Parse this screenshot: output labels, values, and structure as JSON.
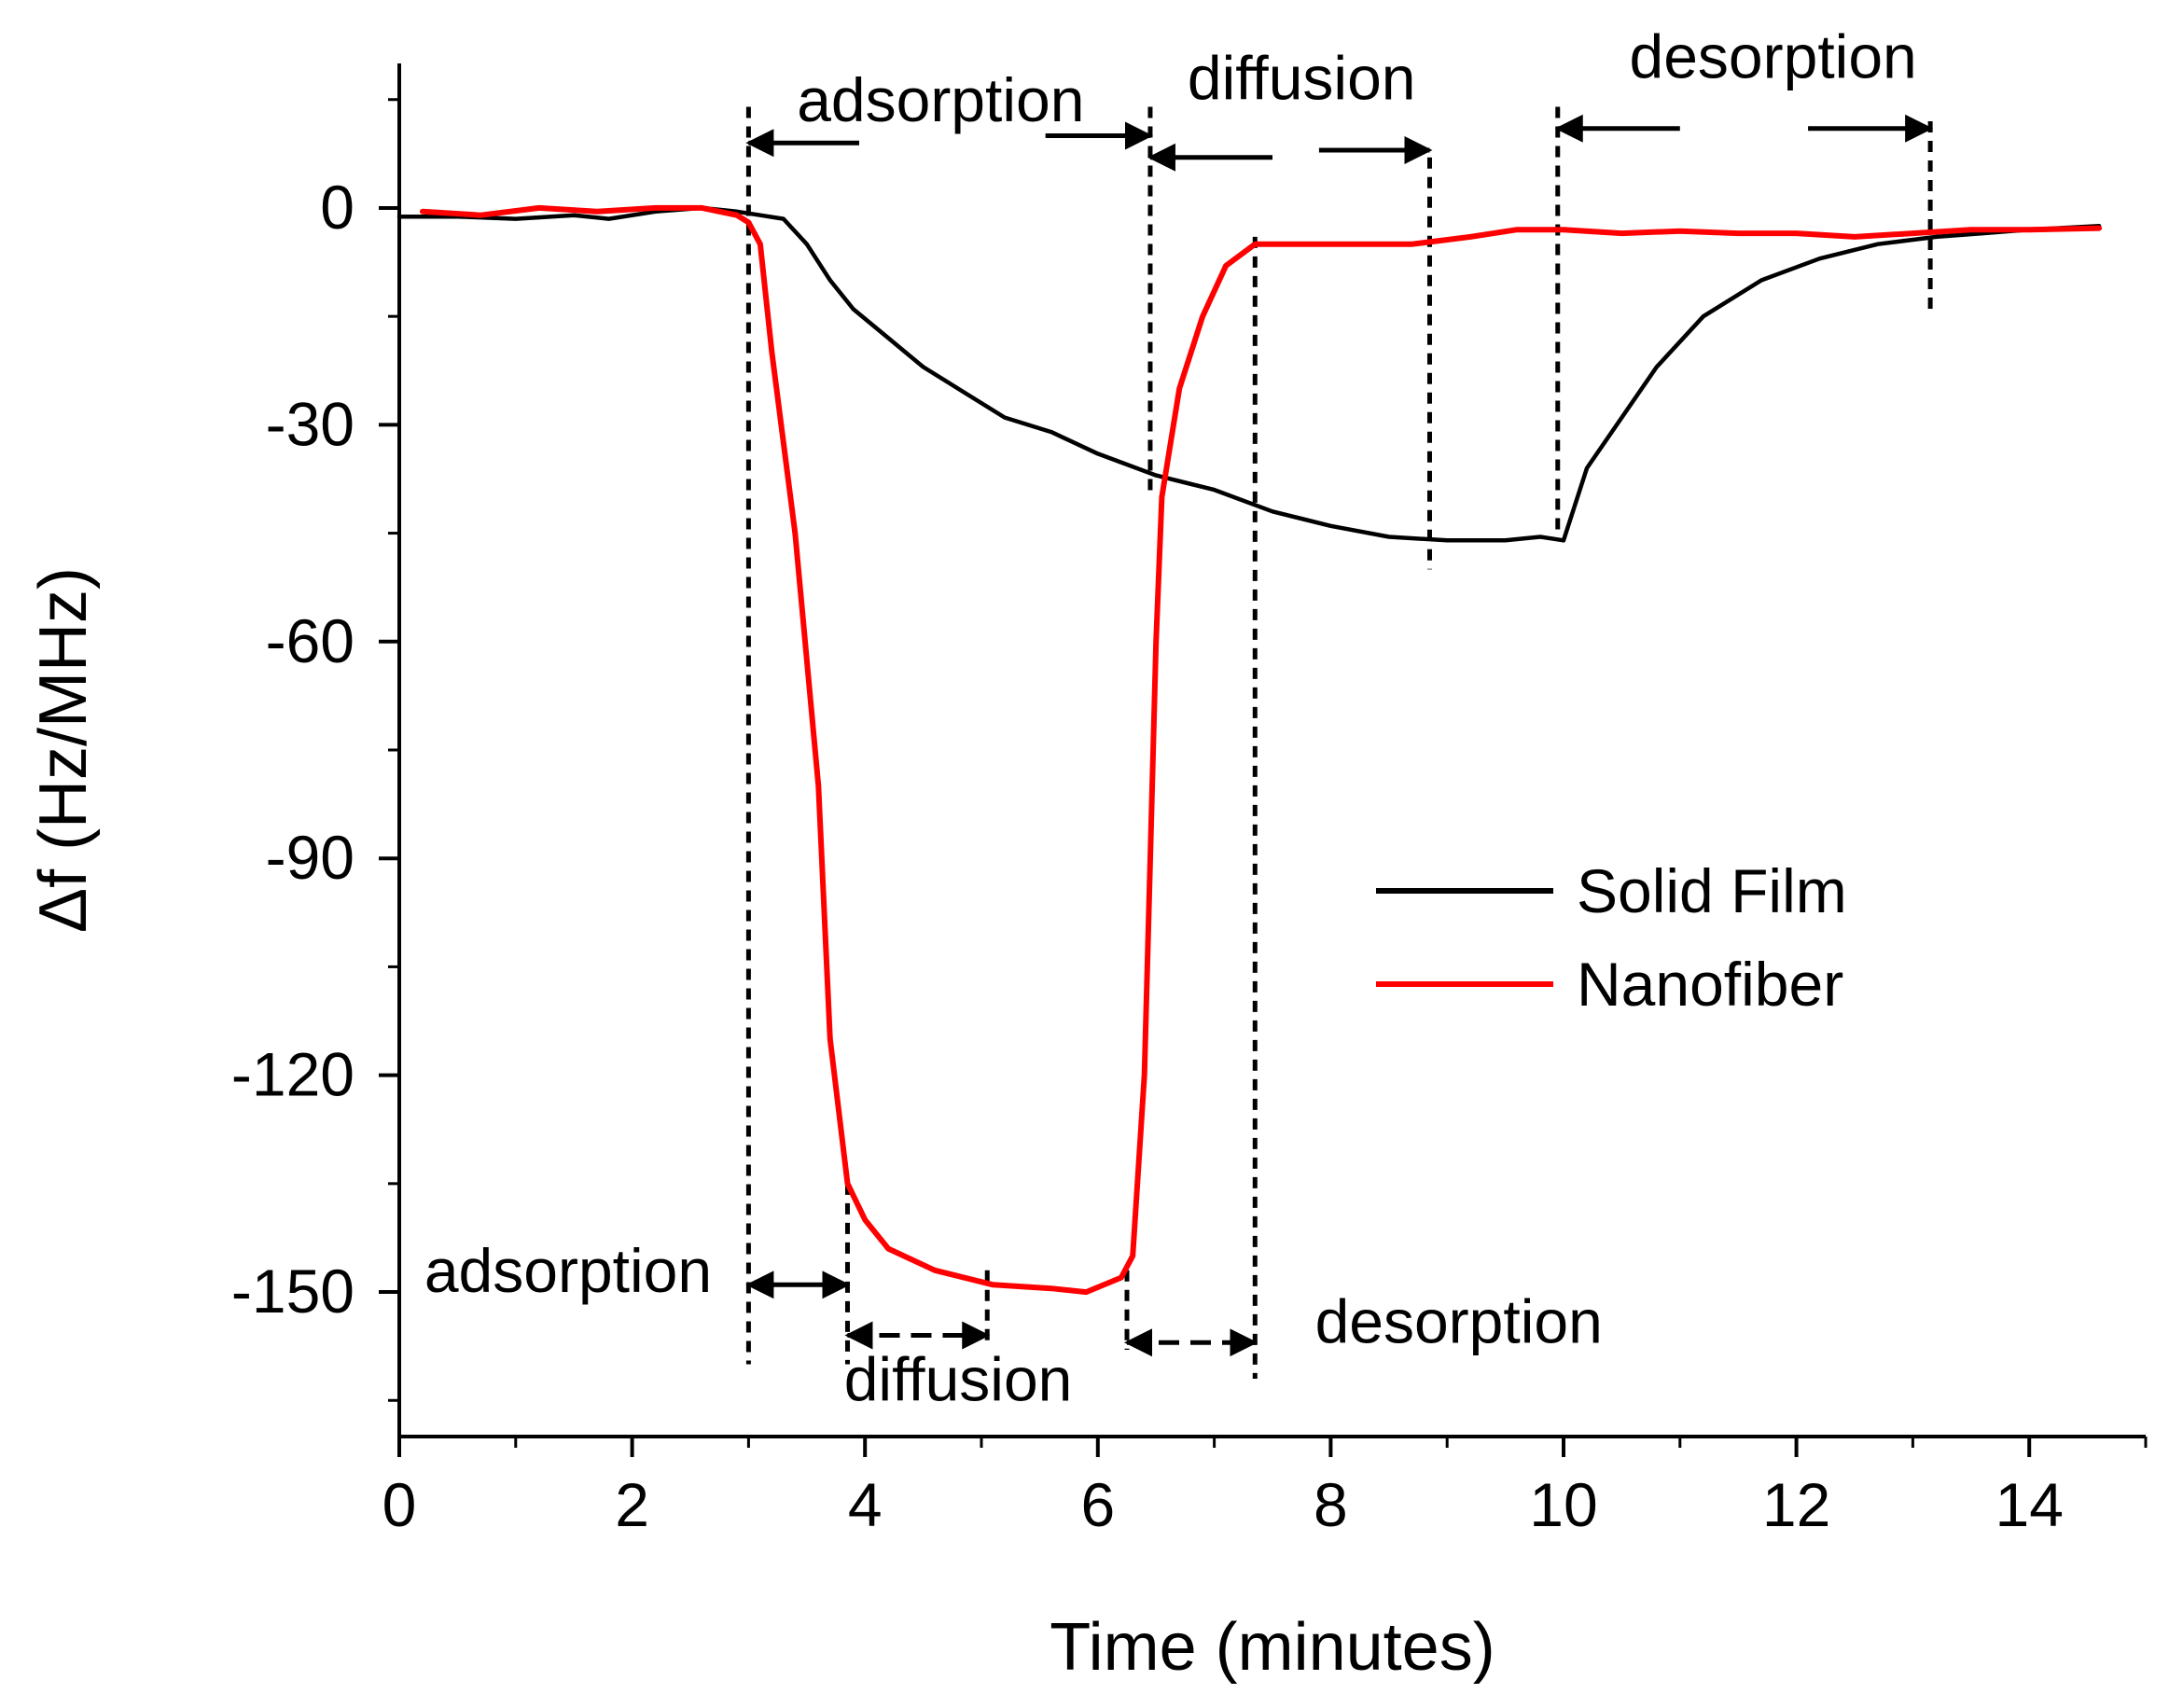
{
  "chart_data": {
    "type": "line",
    "title": "",
    "xlabel": "Time (minutes)",
    "ylabel": "Δf (Hz/MHz)",
    "xlim": [
      0,
      15
    ],
    "ylim": [
      -170,
      20
    ],
    "xticks": [
      0,
      2,
      4,
      6,
      8,
      10,
      12,
      14
    ],
    "yticks": [
      0,
      -30,
      -60,
      -90,
      -120,
      -150
    ],
    "x_minor_step": 1,
    "y_minor_step": 15,
    "grid": false,
    "legend": {
      "placement": "center-right"
    },
    "series": [
      {
        "name": "Solid Film",
        "color": "#000000",
        "points": [
          [
            0,
            -1.2
          ],
          [
            0.5,
            -1.2
          ],
          [
            1,
            -1.5
          ],
          [
            1.5,
            -1
          ],
          [
            1.8,
            -1.5
          ],
          [
            2.2,
            -0.5
          ],
          [
            2.6,
            0
          ],
          [
            2.9,
            -0.5
          ],
          [
            3.1,
            -1
          ],
          [
            3.3,
            -1.5
          ],
          [
            3.5,
            -5
          ],
          [
            3.7,
            -10
          ],
          [
            3.9,
            -14
          ],
          [
            4.2,
            -18
          ],
          [
            4.5,
            -22
          ],
          [
            4.8,
            -25
          ],
          [
            5.2,
            -29
          ],
          [
            5.6,
            -31
          ],
          [
            6,
            -34
          ],
          [
            6.5,
            -37
          ],
          [
            7,
            -39
          ],
          [
            7.5,
            -42
          ],
          [
            8,
            -44
          ],
          [
            8.5,
            -45.5
          ],
          [
            9,
            -46
          ],
          [
            9.5,
            -46
          ],
          [
            9.8,
            -45.5
          ],
          [
            10,
            -46
          ],
          [
            10.2,
            -36
          ],
          [
            10.5,
            -29
          ],
          [
            10.8,
            -22
          ],
          [
            11.2,
            -15
          ],
          [
            11.7,
            -10
          ],
          [
            12.2,
            -7
          ],
          [
            12.7,
            -5
          ],
          [
            13.2,
            -4
          ],
          [
            13.6,
            -3.5
          ],
          [
            14,
            -3
          ],
          [
            14.6,
            -2.5
          ]
        ]
      },
      {
        "name": "Nanofiber",
        "color": "#ff0000",
        "points": [
          [
            0.2,
            -0.5
          ],
          [
            0.7,
            -1
          ],
          [
            1.2,
            0
          ],
          [
            1.7,
            -0.5
          ],
          [
            2.2,
            0
          ],
          [
            2.6,
            0
          ],
          [
            2.9,
            -1
          ],
          [
            3.0,
            -2
          ],
          [
            3.1,
            -5
          ],
          [
            3.2,
            -20
          ],
          [
            3.4,
            -45
          ],
          [
            3.6,
            -80
          ],
          [
            3.7,
            -115
          ],
          [
            3.85,
            -135
          ],
          [
            4.0,
            -140
          ],
          [
            4.2,
            -144
          ],
          [
            4.6,
            -147
          ],
          [
            5.1,
            -149
          ],
          [
            5.6,
            -149.5
          ],
          [
            5.9,
            -150
          ],
          [
            6.2,
            -148
          ],
          [
            6.3,
            -145
          ],
          [
            6.4,
            -120
          ],
          [
            6.45,
            -90
          ],
          [
            6.5,
            -60
          ],
          [
            6.55,
            -40
          ],
          [
            6.7,
            -25
          ],
          [
            6.9,
            -15
          ],
          [
            7.1,
            -8
          ],
          [
            7.35,
            -5
          ],
          [
            7.8,
            -5
          ],
          [
            8.2,
            -5
          ],
          [
            8.7,
            -5
          ],
          [
            9.2,
            -4
          ],
          [
            9.6,
            -3
          ],
          [
            10,
            -3
          ],
          [
            10.5,
            -3.5
          ],
          [
            11,
            -3.2
          ],
          [
            11.5,
            -3.5
          ],
          [
            12,
            -3.5
          ],
          [
            12.5,
            -4
          ],
          [
            13,
            -3.5
          ],
          [
            13.5,
            -3
          ],
          [
            14,
            -3
          ],
          [
            14.6,
            -2.8
          ]
        ]
      }
    ],
    "annotations": [
      {
        "text": "adsorption",
        "x": 4.65,
        "y": 12
      },
      {
        "text": "diffusion",
        "x": 7.75,
        "y": 15
      },
      {
        "text": "desorption",
        "x": 11.8,
        "y": 18
      },
      {
        "text": "adsorption",
        "x": 1.45,
        "y": -150
      },
      {
        "text": "diffusion",
        "x": 4.8,
        "y": -165
      },
      {
        "text": "desorption",
        "x": 9.1,
        "y": -157
      }
    ],
    "dashed_markers": [
      {
        "x": 3.0,
        "y_from": 14,
        "y_to": -160
      },
      {
        "x": 6.45,
        "y_from": 14,
        "y_to": -40
      },
      {
        "x": 8.85,
        "y_from": 7,
        "y_to": -50
      },
      {
        "x": 9.95,
        "y_from": 14,
        "y_to": -46
      },
      {
        "x": 13.15,
        "y_from": 12,
        "y_to": -15
      },
      {
        "x": 3.85,
        "y_from": -135,
        "y_to": -160
      },
      {
        "x": 5.05,
        "y_from": -147,
        "y_to": -157
      },
      {
        "x": 6.25,
        "y_from": -147,
        "y_to": -158
      },
      {
        "x": 7.35,
        "y_from": -4,
        "y_to": -162
      }
    ],
    "arrows": [
      {
        "from": 3.95,
        "to": 3.0,
        "y": 9,
        "style": "solid"
      },
      {
        "from": 5.55,
        "to": 6.45,
        "y": 10,
        "style": "solid"
      },
      {
        "from": 7.5,
        "to": 6.45,
        "y": 7,
        "style": "solid"
      },
      {
        "from": 7.9,
        "to": 8.85,
        "y": 8,
        "style": "solid"
      },
      {
        "from": 11.0,
        "to": 9.95,
        "y": 11,
        "style": "solid"
      },
      {
        "from": 12.1,
        "to": 13.15,
        "y": 11,
        "style": "solid"
      },
      {
        "from": 3.0,
        "to": 3.85,
        "y": -149,
        "style": "solid",
        "double": true
      },
      {
        "from": 3.85,
        "to": 5.05,
        "y": -156,
        "style": "dashed",
        "double": true
      },
      {
        "from": 6.25,
        "to": 7.35,
        "y": -157,
        "style": "dashed",
        "double": true
      }
    ]
  }
}
